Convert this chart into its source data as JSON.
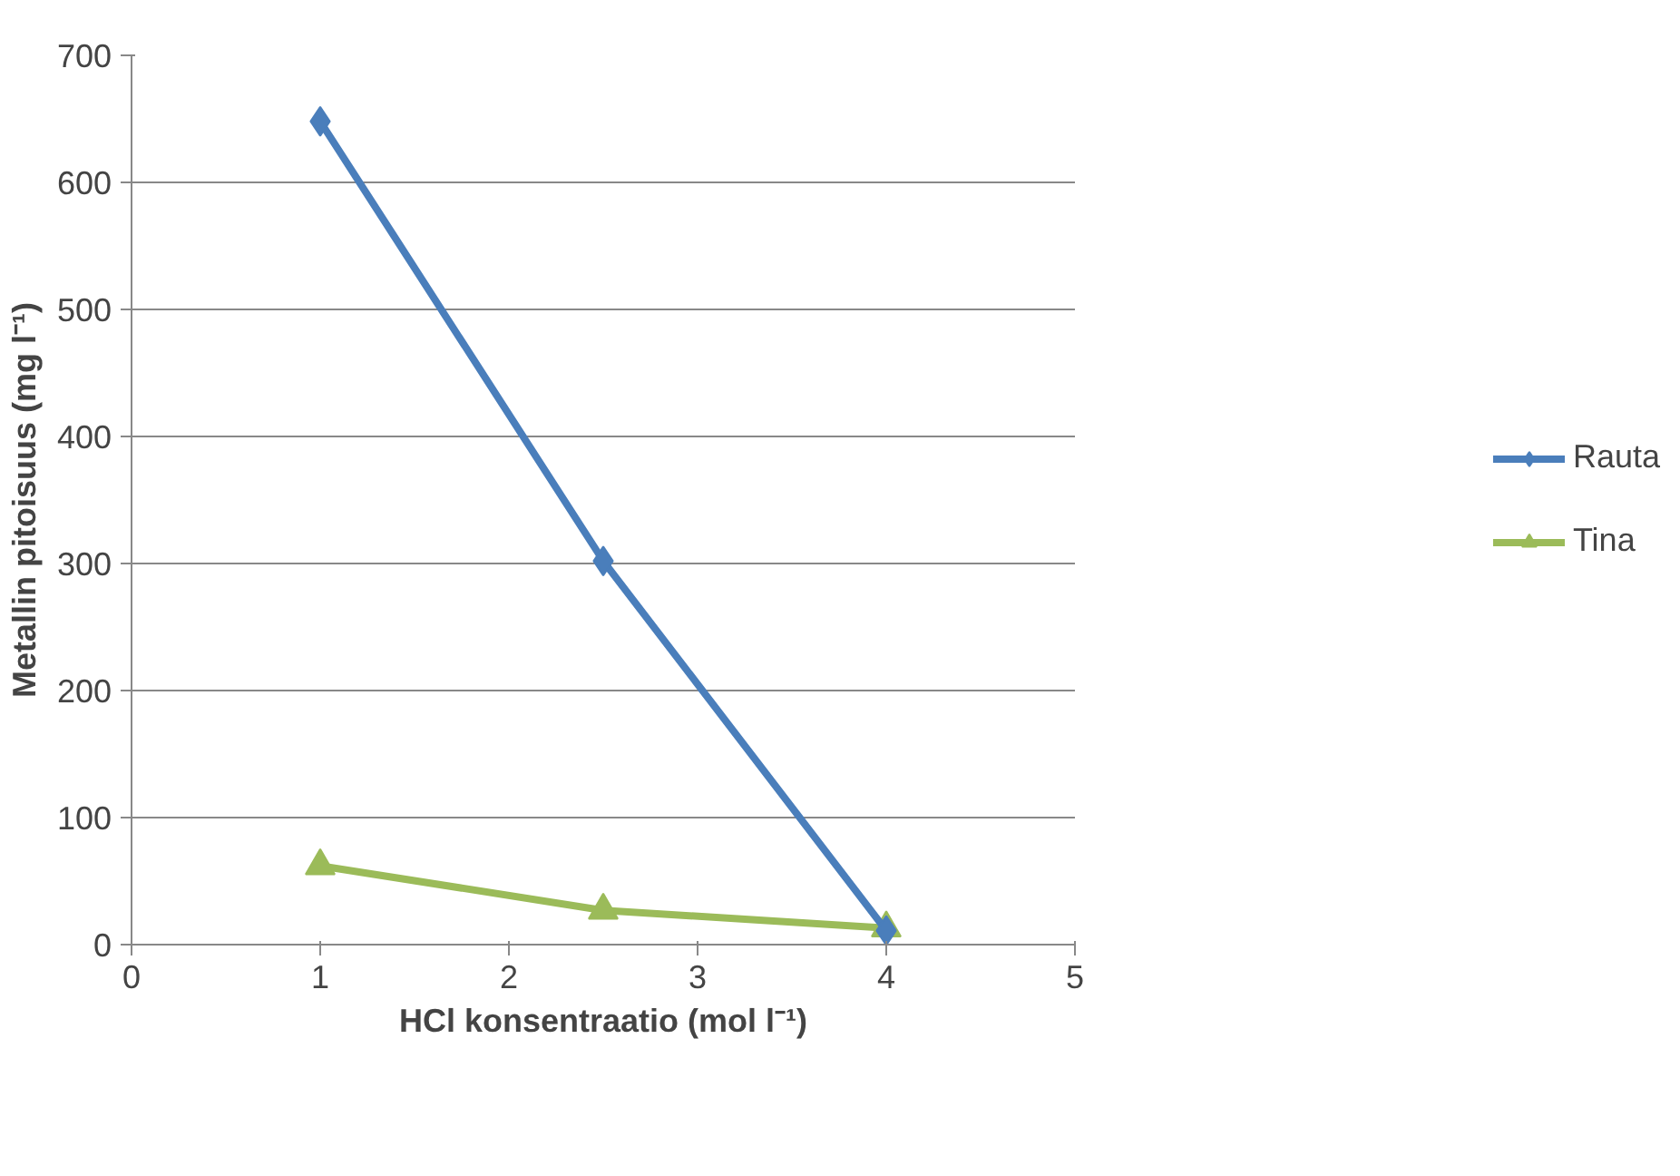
{
  "chart_data": {
    "type": "line",
    "xlabel": "HCl konsentraatio (mol l⁻¹)",
    "ylabel": "Metallin pitoisuus (mg l⁻¹)",
    "x": [
      1,
      2.5,
      4
    ],
    "series": [
      {
        "name": "Rauta",
        "color": "#4a7ebb",
        "values": [
          648,
          302,
          11
        ],
        "marker": "diamond"
      },
      {
        "name": "Tina",
        "color": "#9bbb59",
        "values": [
          62,
          27,
          13
        ],
        "marker": "triangle"
      }
    ],
    "xlim": [
      0,
      5
    ],
    "xticks": [
      0,
      1,
      2,
      3,
      4,
      5
    ],
    "ylim": [
      0,
      700
    ],
    "yticks": [
      0,
      100,
      200,
      300,
      400,
      500,
      600,
      700
    ],
    "grid": "y",
    "legend": "right",
    "line_style": "solid"
  }
}
